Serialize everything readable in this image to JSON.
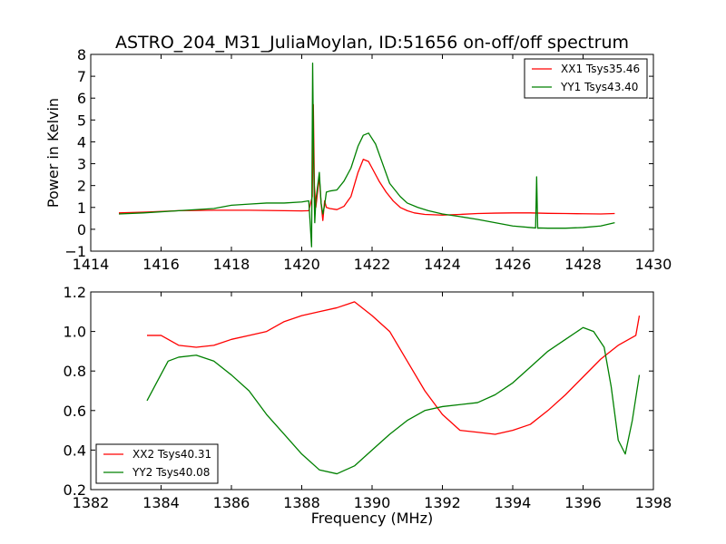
{
  "figure": {
    "title": "ASTRO_204_M31_JuliaMoylan, ID:51656 on-off/off spectrum"
  },
  "chart_data": [
    {
      "type": "line",
      "ylabel": "Power in Kelvin",
      "xlabel": "",
      "xlim": [
        1414,
        1430
      ],
      "ylim": [
        -1,
        8
      ],
      "xticks": [
        "1414",
        "1416",
        "1418",
        "1420",
        "1422",
        "1424",
        "1426",
        "1428",
        "1430"
      ],
      "yticks": [
        "−1",
        "0",
        "1",
        "2",
        "3",
        "4",
        "5",
        "6",
        "7",
        "8"
      ],
      "legend_position": "top-right",
      "grid": false,
      "series": [
        {
          "name": "XX1 Tsys35.46",
          "color": "#ff0000",
          "x": [
            1414.8,
            1415.5,
            1416.5,
            1417.5,
            1418.5,
            1419.5,
            1420.0,
            1420.2,
            1420.3,
            1420.33,
            1420.36,
            1420.4,
            1420.5,
            1420.55,
            1420.6,
            1420.65,
            1420.7,
            1420.8,
            1421.0,
            1421.2,
            1421.4,
            1421.6,
            1421.75,
            1421.9,
            1422.0,
            1422.2,
            1422.4,
            1422.6,
            1422.8,
            1423.0,
            1423.2,
            1423.5,
            1424.0,
            1424.5,
            1425.0,
            1425.5,
            1426.0,
            1426.5,
            1427.0,
            1427.5,
            1428.0,
            1428.5,
            1428.9
          ],
          "y": [
            0.75,
            0.78,
            0.85,
            0.87,
            0.87,
            0.85,
            0.84,
            0.85,
            1.5,
            5.7,
            2.0,
            1.0,
            2.4,
            1.2,
            0.4,
            1.3,
            1.0,
            0.95,
            0.9,
            1.05,
            1.5,
            2.6,
            3.2,
            3.1,
            2.8,
            2.2,
            1.7,
            1.3,
            1.0,
            0.85,
            0.75,
            0.68,
            0.65,
            0.68,
            0.72,
            0.74,
            0.75,
            0.75,
            0.73,
            0.72,
            0.71,
            0.7,
            0.72
          ]
        },
        {
          "name": "YY1 Tsys43.40",
          "color": "#008000",
          "x": [
            1414.8,
            1415.5,
            1416.5,
            1417.5,
            1418.0,
            1418.5,
            1419.0,
            1419.5,
            1420.0,
            1420.2,
            1420.28,
            1420.31,
            1420.34,
            1420.37,
            1420.4,
            1420.5,
            1420.55,
            1420.6,
            1420.65,
            1420.7,
            1420.8,
            1421.0,
            1421.2,
            1421.4,
            1421.6,
            1421.75,
            1421.9,
            1422.1,
            1422.3,
            1422.5,
            1422.8,
            1423.0,
            1423.3,
            1423.6,
            1424.0,
            1424.5,
            1425.0,
            1425.5,
            1426.0,
            1426.5,
            1426.65,
            1426.68,
            1426.71,
            1426.75,
            1427.0,
            1427.5,
            1428.0,
            1428.5,
            1428.9
          ],
          "y": [
            0.7,
            0.75,
            0.85,
            0.95,
            1.1,
            1.15,
            1.2,
            1.2,
            1.25,
            1.3,
            -0.8,
            7.6,
            3.0,
            0.3,
            1.3,
            2.6,
            1.2,
            0.7,
            1.1,
            1.7,
            1.75,
            1.8,
            2.2,
            2.8,
            3.8,
            4.3,
            4.4,
            3.9,
            3.0,
            2.1,
            1.5,
            1.2,
            1.0,
            0.85,
            0.7,
            0.58,
            0.45,
            0.3,
            0.15,
            0.08,
            0.06,
            2.4,
            0.05,
            0.06,
            0.05,
            0.05,
            0.08,
            0.15,
            0.3
          ]
        }
      ]
    },
    {
      "type": "line",
      "ylabel": "",
      "xlabel": "Frequency (MHz)",
      "xlim": [
        1382,
        1398
      ],
      "ylim": [
        0.2,
        1.2
      ],
      "xticks": [
        "1382",
        "1384",
        "1386",
        "1388",
        "1390",
        "1392",
        "1394",
        "1396",
        "1398"
      ],
      "yticks": [
        "0.2",
        "0.4",
        "0.6",
        "0.8",
        "1.0",
        "1.2"
      ],
      "legend_position": "bottom-left",
      "grid": false,
      "series": [
        {
          "name": "XX2 Tsys40.31",
          "color": "#ff0000",
          "x": [
            1383.6,
            1384.0,
            1384.5,
            1385.0,
            1385.5,
            1386.0,
            1386.5,
            1387.0,
            1387.5,
            1388.0,
            1388.5,
            1389.0,
            1389.5,
            1390.0,
            1390.5,
            1391.0,
            1391.5,
            1392.0,
            1392.5,
            1393.0,
            1393.5,
            1394.0,
            1394.5,
            1395.0,
            1395.5,
            1396.0,
            1396.5,
            1397.0,
            1397.5,
            1397.6
          ],
          "y": [
            0.98,
            0.98,
            0.93,
            0.92,
            0.93,
            0.96,
            0.98,
            1.0,
            1.05,
            1.08,
            1.1,
            1.12,
            1.15,
            1.08,
            1.0,
            0.85,
            0.7,
            0.58,
            0.5,
            0.49,
            0.48,
            0.5,
            0.53,
            0.6,
            0.68,
            0.77,
            0.86,
            0.93,
            0.98,
            1.08
          ]
        },
        {
          "name": "YY2 Tsys40.08",
          "color": "#008000",
          "x": [
            1383.6,
            1383.9,
            1384.2,
            1384.5,
            1385.0,
            1385.5,
            1386.0,
            1386.5,
            1387.0,
            1387.5,
            1388.0,
            1388.5,
            1389.0,
            1389.5,
            1390.0,
            1390.5,
            1391.0,
            1391.5,
            1392.0,
            1392.5,
            1393.0,
            1393.5,
            1394.0,
            1394.5,
            1395.0,
            1395.5,
            1396.0,
            1396.3,
            1396.6,
            1396.8,
            1397.0,
            1397.2,
            1397.4,
            1397.6
          ],
          "y": [
            0.65,
            0.75,
            0.85,
            0.87,
            0.88,
            0.85,
            0.78,
            0.7,
            0.58,
            0.48,
            0.38,
            0.3,
            0.28,
            0.32,
            0.4,
            0.48,
            0.55,
            0.6,
            0.62,
            0.63,
            0.64,
            0.68,
            0.74,
            0.82,
            0.9,
            0.96,
            1.02,
            1.0,
            0.92,
            0.72,
            0.45,
            0.38,
            0.55,
            0.78
          ]
        }
      ]
    }
  ]
}
